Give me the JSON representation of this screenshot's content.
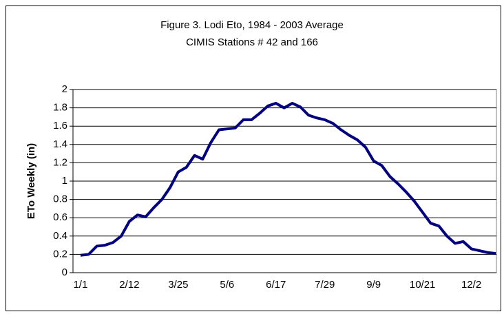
{
  "chart_data": {
    "type": "line",
    "title": "Figure 3. Lodi Eto, 1984 - 2003 Average",
    "subtitle": "CIMIS Stations # 42 and 166",
    "y_label": "ETo Weekly (in)",
    "categories": [
      "1/1",
      null,
      null,
      null,
      null,
      null,
      "2/12",
      null,
      null,
      null,
      null,
      null,
      "3/25",
      null,
      null,
      null,
      null,
      null,
      "5/6",
      null,
      null,
      null,
      null,
      null,
      "6/17",
      null,
      null,
      null,
      null,
      null,
      "7/29",
      null,
      null,
      null,
      null,
      null,
      "9/9",
      null,
      null,
      null,
      null,
      null,
      "10/21",
      null,
      null,
      null,
      null,
      null,
      "12/2",
      null,
      null,
      null
    ],
    "series": [
      {
        "name": "ETo",
        "color": "#000080",
        "values": [
          0.19,
          0.2,
          0.29,
          0.3,
          0.33,
          0.4,
          0.56,
          0.63,
          0.61,
          0.71,
          0.8,
          0.93,
          1.1,
          1.15,
          1.28,
          1.24,
          1.42,
          1.56,
          1.57,
          1.58,
          1.67,
          1.67,
          1.74,
          1.82,
          1.85,
          1.8,
          1.85,
          1.81,
          1.72,
          1.69,
          1.67,
          1.63,
          1.56,
          1.5,
          1.45,
          1.37,
          1.22,
          1.17,
          1.05,
          0.97,
          0.88,
          0.78,
          0.66,
          0.54,
          0.51,
          0.4,
          0.32,
          0.34,
          0.26,
          0.24,
          0.22,
          0.21
        ]
      }
    ],
    "ylim": [
      0,
      2
    ],
    "yticks": [
      0,
      0.2,
      0.4,
      0.6,
      0.8,
      1,
      1.2,
      1.4,
      1.6,
      1.8,
      2
    ],
    "grid": true
  }
}
